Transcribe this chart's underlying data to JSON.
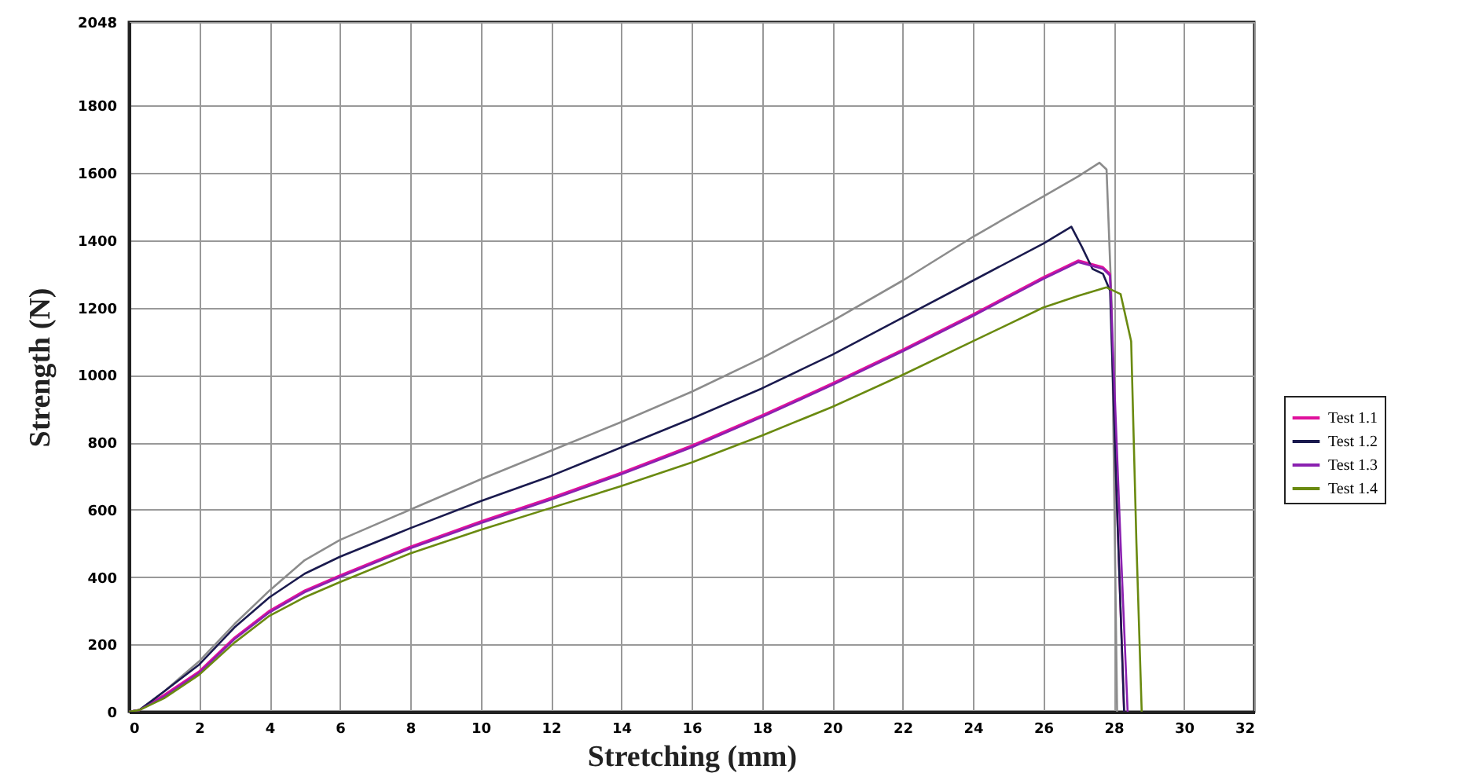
{
  "chart_data": {
    "type": "line",
    "xlabel": "Stretching (mm)",
    "ylabel": "Strength (N)",
    "xlim": [
      0,
      32
    ],
    "xticks": [
      0,
      2,
      4,
      6,
      8,
      10,
      12,
      14,
      16,
      18,
      20,
      22,
      24,
      26,
      28,
      30,
      32
    ],
    "ylim": [
      0,
      2048
    ],
    "yticks": [
      0,
      200,
      400,
      600,
      800,
      1000,
      1200,
      1400,
      1600,
      1800,
      2048
    ],
    "grid": true,
    "legend": "right",
    "line_style": "solid",
    "marker": "none",
    "series": [
      {
        "color": "#8c8c8c",
        "x": [
          0,
          0.3,
          1,
          2,
          3,
          4,
          5,
          6,
          8,
          10,
          12,
          14,
          16,
          18,
          20,
          22,
          24,
          26,
          27,
          27.6,
          27.8,
          27.95,
          28.1
        ],
        "values": [
          0,
          5,
          60,
          150,
          260,
          360,
          450,
          510,
          600,
          690,
          775,
          860,
          950,
          1050,
          1160,
          1280,
          1410,
          1530,
          1590,
          1630,
          1610,
          1200,
          0
        ]
      },
      {
        "name": "Test 1.1",
        "color": "#e0109c",
        "x": [
          0,
          0.3,
          1,
          2,
          3,
          4,
          5,
          6,
          8,
          10,
          12,
          14,
          16,
          18,
          20,
          22,
          24,
          26,
          27,
          27.7,
          27.9,
          28.1,
          28.3
        ],
        "values": [
          0,
          5,
          50,
          120,
          220,
          300,
          360,
          405,
          490,
          565,
          635,
          710,
          790,
          880,
          975,
          1075,
          1180,
          1290,
          1340,
          1320,
          1300,
          600,
          0
        ]
      },
      {
        "name": "Test 1.2",
        "color": "#1a1a4e",
        "x": [
          0,
          0.3,
          1,
          2,
          3,
          4,
          5,
          6,
          8,
          10,
          12,
          14,
          16,
          18,
          20,
          22,
          24,
          26,
          26.8,
          27.1,
          27.4,
          27.7,
          27.9,
          28.1,
          28.3
        ],
        "values": [
          0,
          5,
          60,
          140,
          250,
          340,
          410,
          460,
          545,
          625,
          700,
          785,
          870,
          960,
          1060,
          1170,
          1280,
          1390,
          1440,
          1380,
          1315,
          1300,
          1250,
          600,
          0
        ]
      },
      {
        "name": "Test 1.3",
        "color": "#8a20b0",
        "x": [
          0,
          0.3,
          1,
          2,
          3,
          4,
          5,
          6,
          8,
          10,
          12,
          14,
          16,
          18,
          20,
          22,
          24,
          26,
          27,
          27.7,
          27.9,
          28.2,
          28.4
        ],
        "values": [
          0,
          5,
          45,
          115,
          215,
          295,
          355,
          400,
          485,
          560,
          630,
          705,
          785,
          875,
          970,
          1070,
          1175,
          1285,
          1335,
          1315,
          1295,
          500,
          0
        ]
      },
      {
        "name": "Test 1.4",
        "color": "#6a8a10",
        "x": [
          0,
          0.3,
          1,
          2,
          3,
          4,
          5,
          6,
          8,
          10,
          12,
          14,
          16,
          18,
          20,
          22,
          24,
          26,
          27,
          27.8,
          28.2,
          28.5,
          28.65,
          28.8
        ],
        "values": [
          0,
          5,
          40,
          110,
          205,
          285,
          340,
          385,
          470,
          540,
          605,
          670,
          740,
          820,
          905,
          1000,
          1100,
          1200,
          1235,
          1260,
          1240,
          1100,
          500,
          0
        ]
      }
    ]
  }
}
